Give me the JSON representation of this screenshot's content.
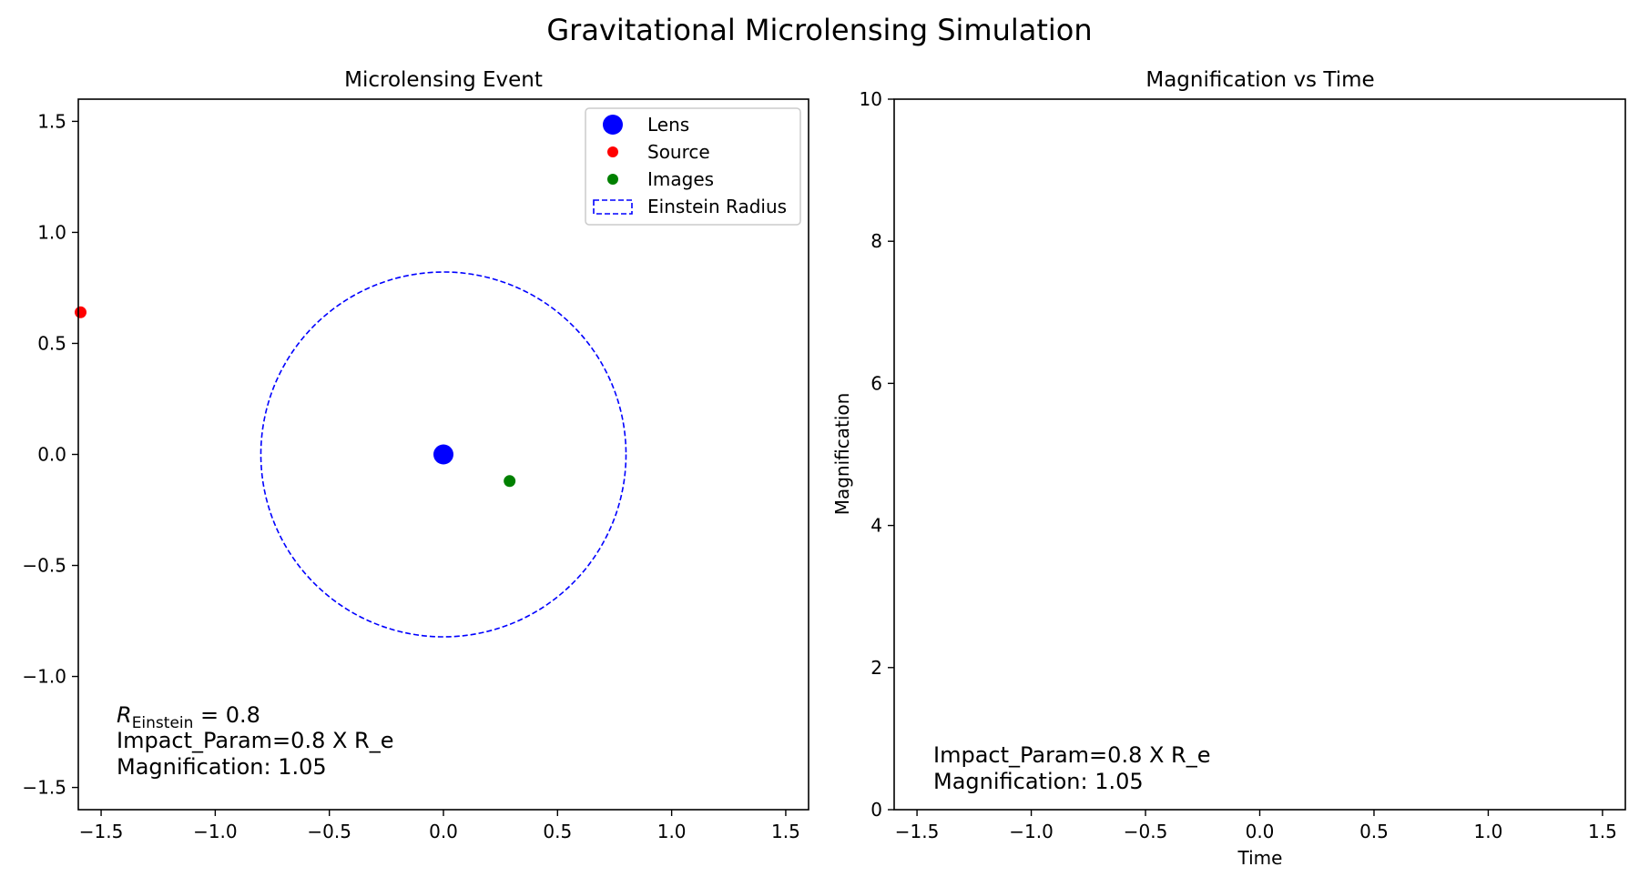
{
  "figure": {
    "title": "Gravitational Microlensing Simulation"
  },
  "chart_data": [
    {
      "type": "scatter",
      "title": "Microlensing Event",
      "xlabel": "",
      "ylabel": "",
      "xlim": [
        -1.6,
        1.6
      ],
      "ylim": [
        -1.6,
        1.6
      ],
      "xticks": [
        -1.5,
        -1.0,
        -0.5,
        0.0,
        0.5,
        1.0,
        1.5
      ],
      "yticks": [
        -1.5,
        -1.0,
        -0.5,
        0.0,
        0.5,
        1.0,
        1.5
      ],
      "xtick_labels": [
        "−1.5",
        "−1.0",
        "−0.5",
        "0.0",
        "0.5",
        "1.0",
        "1.5"
      ],
      "ytick_labels": [
        "−1.5",
        "−1.0",
        "−0.5",
        "0.0",
        "0.5",
        "1.0",
        "1.5"
      ],
      "grid": false,
      "legend_position": "top-right",
      "series": [
        {
          "name": "Lens",
          "marker": "large-dot",
          "color": "#0000ff",
          "points": [
            [
              0.0,
              0.0
            ]
          ]
        },
        {
          "name": "Source",
          "marker": "dot",
          "color": "#ff0000",
          "points": [
            [
              -1.59,
              0.64
            ]
          ]
        },
        {
          "name": "Images",
          "marker": "dot",
          "color": "#008000",
          "points": [
            [
              0.29,
              -0.12
            ]
          ]
        },
        {
          "name": "Einstein Radius",
          "shape": "dashed-circle",
          "color": "#0000ff",
          "center": [
            0.0,
            0.0
          ],
          "radius": 0.8
        }
      ],
      "annotations": {
        "r_prefix": "R",
        "r_subscript": "Einstein",
        "r_value": " = 0.8",
        "impact": "Impact_Param=0.8 X R_e",
        "magnification": "Magnification: 1.05"
      }
    },
    {
      "type": "line",
      "title": "Magnification vs Time",
      "xlabel": "Time",
      "ylabel": "Magnification",
      "xlim": [
        -1.6,
        1.6
      ],
      "ylim": [
        0,
        10
      ],
      "xticks": [
        -1.5,
        -1.0,
        -0.5,
        0.0,
        0.5,
        1.0,
        1.5
      ],
      "yticks": [
        0,
        2,
        4,
        6,
        8,
        10
      ],
      "xtick_labels": [
        "−1.5",
        "−1.0",
        "−0.5",
        "0.0",
        "0.5",
        "1.0",
        "1.5"
      ],
      "ytick_labels": [
        "0",
        "2",
        "4",
        "6",
        "8",
        "10"
      ],
      "grid": false,
      "series": [],
      "annotations": {
        "impact": "Impact_Param=0.8 X R_e",
        "magnification": "Magnification: 1.05"
      }
    }
  ]
}
